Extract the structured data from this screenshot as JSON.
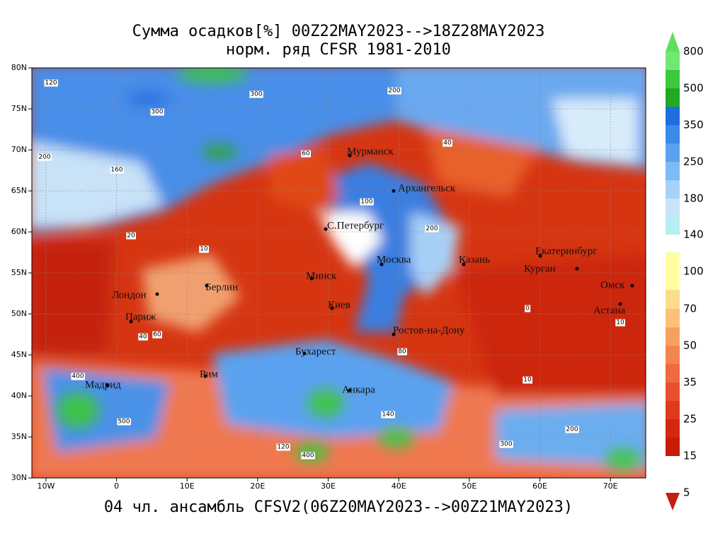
{
  "map": {
    "title": [
      "Сумма осадков[%] 00Z22MAY2023-->18Z28MAY2023",
      "норм. ряд CFSR 1981-2010"
    ],
    "footer": "04 чл. ансамбль CFSV2(06Z20MAY2023-->00Z21MAY2023)",
    "xlim": [
      -12,
      75
    ],
    "ylim": [
      30,
      80
    ],
    "xticks": [
      {
        "value": -10,
        "label": "10W"
      },
      {
        "value": 0,
        "label": "0"
      },
      {
        "value": 10,
        "label": "10E"
      },
      {
        "value": 20,
        "label": "20E"
      },
      {
        "value": 30,
        "label": "30E"
      },
      {
        "value": 40,
        "label": "40E"
      },
      {
        "value": 50,
        "label": "50E"
      },
      {
        "value": 60,
        "label": "60E"
      },
      {
        "value": 70,
        "label": "70E"
      }
    ],
    "yticks": [
      {
        "value": 80,
        "label": "80N"
      },
      {
        "value": 75,
        "label": "75N"
      },
      {
        "value": 70,
        "label": "70N"
      },
      {
        "value": 65,
        "label": "65N"
      },
      {
        "value": 60,
        "label": "60N"
      },
      {
        "value": 55,
        "label": "55N"
      },
      {
        "value": 50,
        "label": "50N"
      },
      {
        "value": 45,
        "label": "45N"
      },
      {
        "value": 40,
        "label": "40N"
      },
      {
        "value": 35,
        "label": "35N"
      },
      {
        "value": 30,
        "label": "30N"
      }
    ],
    "grid": true,
    "cities": [
      "Мурманск",
      "Архангельск",
      "С.Петербург",
      "Москва",
      "Казань",
      "Екатеринбург",
      "Курган",
      "Омск",
      "Астана",
      "Минск",
      "Киев",
      "Берлин",
      "Лондон",
      "Париж",
      "Мадрид",
      "Рим",
      "Бухарест",
      "Анкара",
      "Ростов-на-Дону"
    ],
    "colorbar": {
      "levels": [
        800,
        500,
        350,
        250,
        180,
        140,
        100,
        70,
        50,
        35,
        25,
        15,
        5
      ],
      "colors": [
        "#5ee05e",
        "#72e872",
        "#3cc83c",
        "#22a822",
        "#1e6ee0",
        "#3a8ae8",
        "#5aa2f0",
        "#80baf4",
        "#a6d2f8",
        "#c8e4fa",
        "#b4f0f0",
        "#ffffff",
        "#fefea0",
        "#fcdc8c",
        "#fcc07a",
        "#f8a060",
        "#f48450",
        "#f06a40",
        "#e85030",
        "#e03a1c",
        "#d42810",
        "#c81c08",
        "#c02010"
      ]
    },
    "contour_labels": [
      120,
      300,
      300,
      200,
      200,
      160,
      60,
      40,
      80,
      100,
      140,
      200,
      20,
      10,
      400,
      500,
      200,
      300,
      400,
      120,
      10,
      0,
      10,
      40,
      60
    ]
  }
}
